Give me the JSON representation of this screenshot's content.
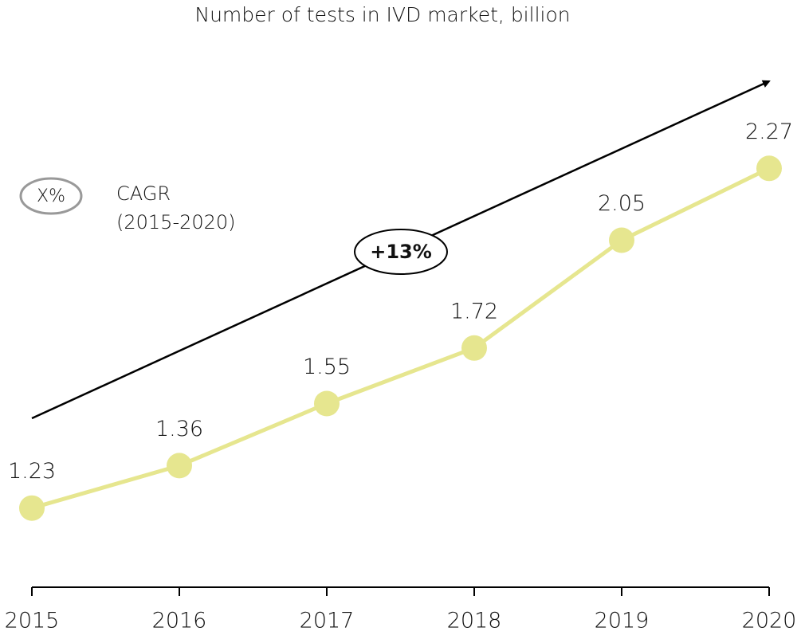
{
  "chart_data": {
    "type": "line",
    "title": "Number of tests in IVD market, billion",
    "categories": [
      "2015",
      "2016",
      "2017",
      "2018",
      "2019",
      "2020"
    ],
    "values": [
      1.23,
      1.36,
      1.55,
      1.72,
      2.05,
      2.27
    ],
    "color": "#e6e68f",
    "legend": {
      "symbol": "X%",
      "label": [
        "CAGR",
        "(2015-2020)"
      ]
    },
    "annotation": "+13%"
  }
}
